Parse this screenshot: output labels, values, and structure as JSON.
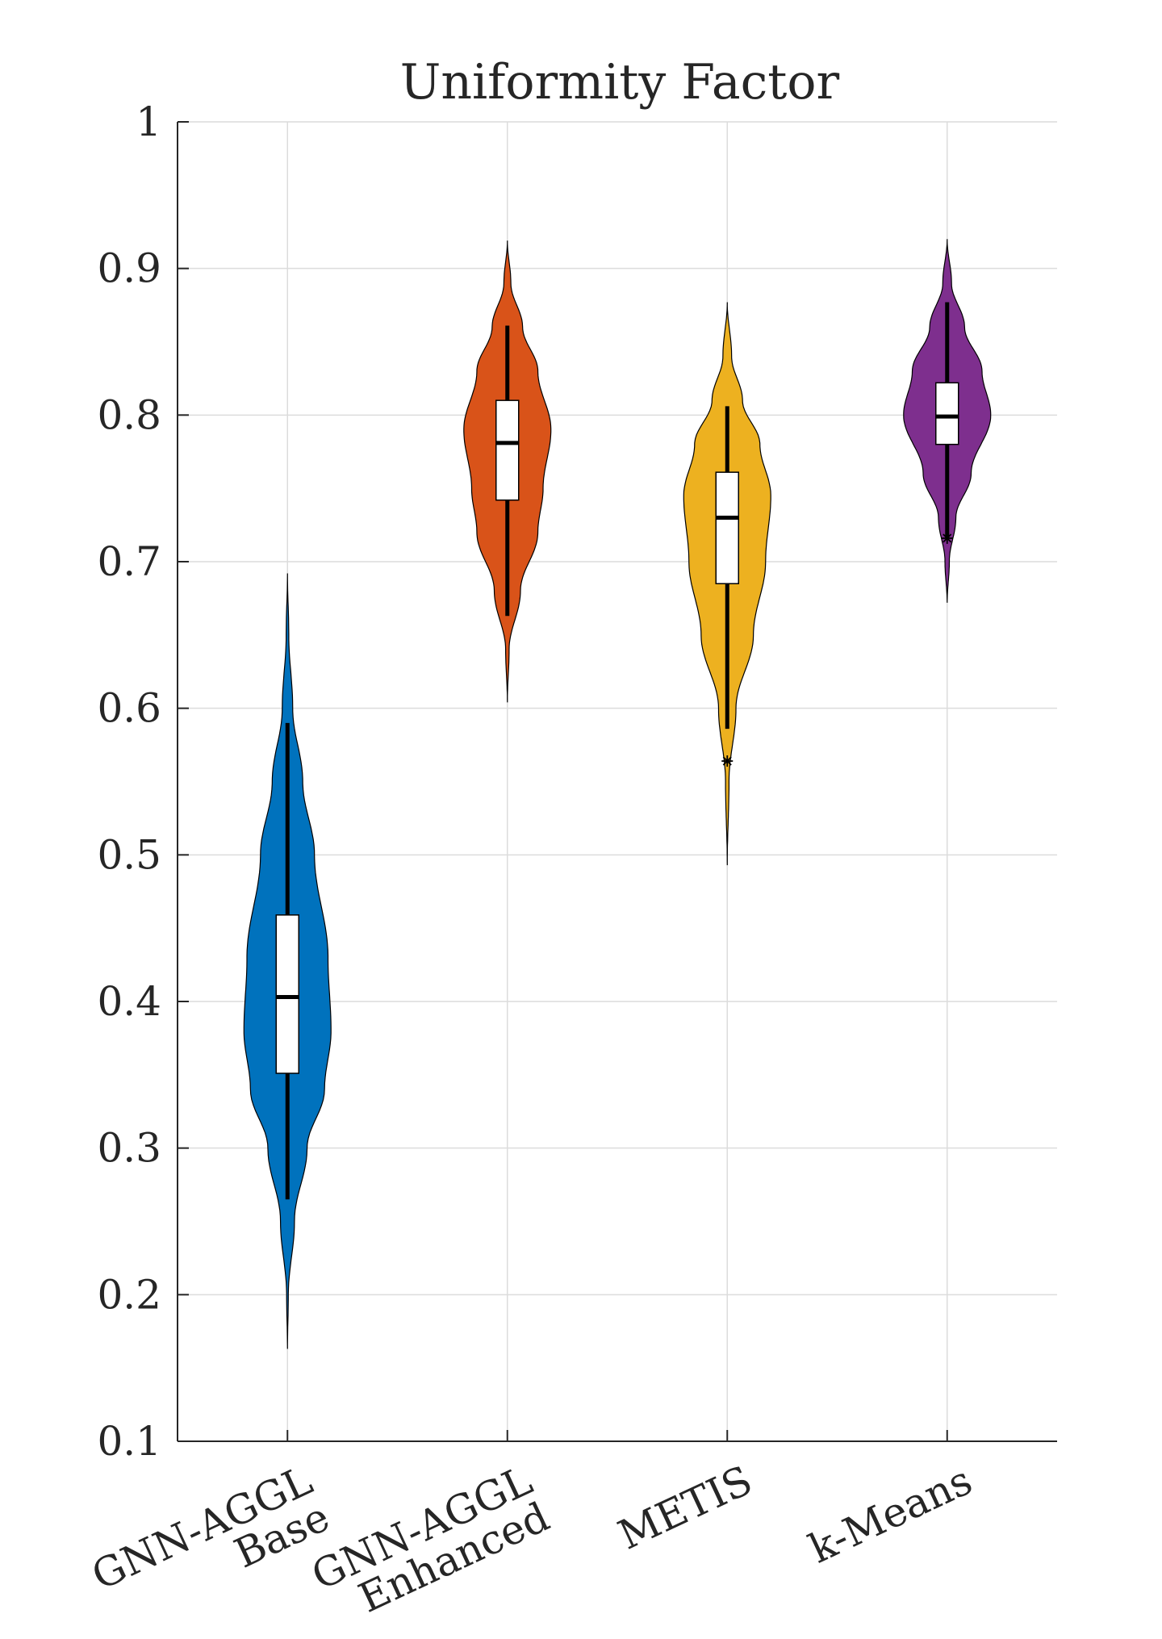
{
  "chart_data": {
    "type": "violin",
    "title": "Uniformity Factor",
    "xlabel": "",
    "ylabel": "",
    "ylim": [
      0.1,
      1.0
    ],
    "yticks": [
      "0.1",
      "0.2",
      "0.3",
      "0.4",
      "0.5",
      "0.6",
      "0.7",
      "0.8",
      "0.9",
      "1"
    ],
    "grid": true,
    "categories": [
      {
        "lines": [
          "GNN-AGGL",
          "Base"
        ]
      },
      {
        "lines": [
          "GNN-AGGL",
          "Enhanced"
        ]
      },
      {
        "lines": [
          "METIS"
        ]
      },
      {
        "lines": [
          "k-Means"
        ]
      }
    ],
    "series": [
      {
        "color": "#0072BD",
        "min": 0.163,
        "max": 0.692,
        "q1": 0.351,
        "median": 0.403,
        "q3": 0.459,
        "whisker_low": 0.265,
        "whisker_high": 0.59,
        "outliers": [],
        "density": [
          [
            0.163,
            0.0
          ],
          [
            0.2,
            0.02
          ],
          [
            0.25,
            0.16
          ],
          [
            0.3,
            0.45
          ],
          [
            0.34,
            0.85
          ],
          [
            0.38,
            1.0
          ],
          [
            0.43,
            0.93
          ],
          [
            0.5,
            0.62
          ],
          [
            0.55,
            0.35
          ],
          [
            0.6,
            0.12
          ],
          [
            0.65,
            0.03
          ],
          [
            0.692,
            0.0
          ]
        ]
      },
      {
        "color": "#D95319",
        "min": 0.604,
        "max": 0.919,
        "q1": 0.742,
        "median": 0.781,
        "q3": 0.81,
        "whisker_low": 0.663,
        "whisker_high": 0.861,
        "outliers": [],
        "density": [
          [
            0.604,
            0.0
          ],
          [
            0.64,
            0.04
          ],
          [
            0.68,
            0.3
          ],
          [
            0.72,
            0.7
          ],
          [
            0.75,
            0.82
          ],
          [
            0.79,
            1.0
          ],
          [
            0.83,
            0.7
          ],
          [
            0.86,
            0.35
          ],
          [
            0.89,
            0.08
          ],
          [
            0.919,
            0.0
          ]
        ]
      },
      {
        "color": "#EDB120",
        "min": 0.493,
        "max": 0.877,
        "q1": 0.685,
        "median": 0.73,
        "q3": 0.761,
        "whisker_low": 0.586,
        "whisker_high": 0.806,
        "outliers": [
          0.564
        ],
        "density": [
          [
            0.493,
            0.0
          ],
          [
            0.55,
            0.04
          ],
          [
            0.6,
            0.2
          ],
          [
            0.65,
            0.6
          ],
          [
            0.7,
            0.88
          ],
          [
            0.745,
            1.0
          ],
          [
            0.78,
            0.75
          ],
          [
            0.81,
            0.35
          ],
          [
            0.84,
            0.1
          ],
          [
            0.877,
            0.0
          ]
        ]
      },
      {
        "color": "#7E2F8E",
        "min": 0.672,
        "max": 0.92,
        "q1": 0.78,
        "median": 0.799,
        "q3": 0.822,
        "whisker_low": 0.716,
        "whisker_high": 0.877,
        "outliers": [
          0.716
        ],
        "density": [
          [
            0.672,
            0.0
          ],
          [
            0.7,
            0.05
          ],
          [
            0.73,
            0.2
          ],
          [
            0.76,
            0.55
          ],
          [
            0.8,
            1.0
          ],
          [
            0.83,
            0.8
          ],
          [
            0.86,
            0.4
          ],
          [
            0.89,
            0.1
          ],
          [
            0.92,
            0.0
          ]
        ]
      }
    ]
  }
}
